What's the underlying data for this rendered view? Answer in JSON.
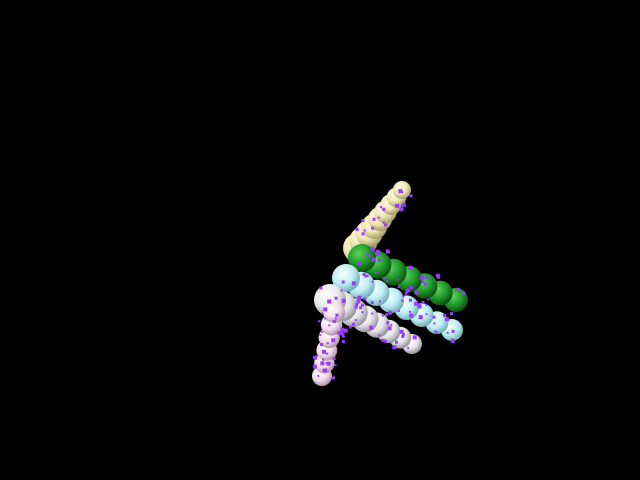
{
  "scene": {
    "background": "#000000",
    "chains": [
      {
        "name": "cream",
        "color_light": "#fffbe6",
        "color_mid": "#efe6b4",
        "color_dark": "#9c9660",
        "bead_count": 9
      },
      {
        "name": "green",
        "color_light": "#5fd35f",
        "color_mid": "#1f9a2a",
        "color_dark": "#0a4a10",
        "bead_count": 7
      },
      {
        "name": "cyan",
        "color_light": "#f4ffff",
        "color_mid": "#bfeef4",
        "color_dark": "#6aa8b0",
        "bead_count": 8
      },
      {
        "name": "white",
        "color_light": "#ffffff",
        "color_mid": "#e8e8ec",
        "color_dark": "#8c8c96",
        "bead_count": 8
      },
      {
        "name": "pink",
        "color_light": "#ffffff",
        "color_mid": "#f2dcec",
        "color_dark": "#a88aa0",
        "bead_count": 6
      }
    ],
    "dot_color": "#9a3cff",
    "dot_count": 150
  }
}
